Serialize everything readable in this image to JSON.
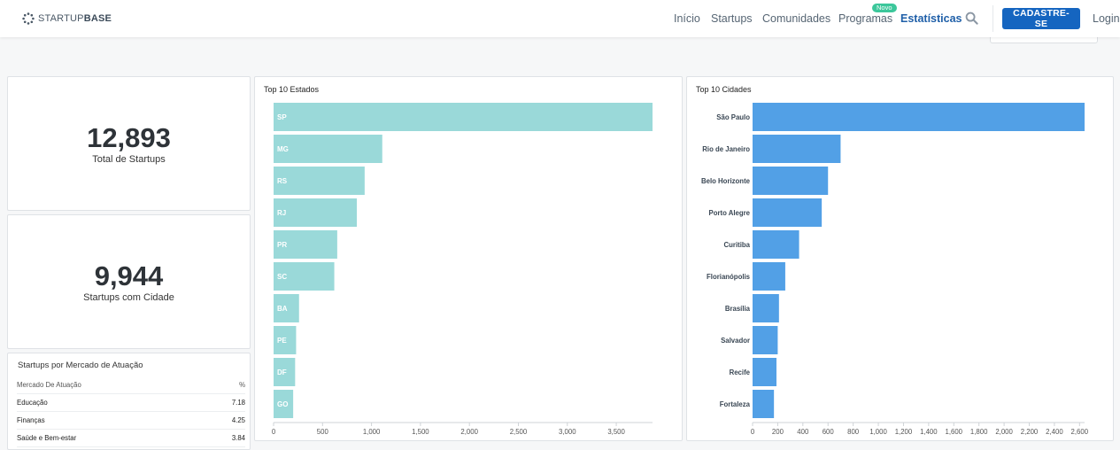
{
  "header": {
    "logo": {
      "prefix": "STARTUP",
      "suffix": "BASE"
    },
    "nav": [
      {
        "label": "Início",
        "active": false
      },
      {
        "label": "Startups",
        "active": false
      },
      {
        "label": "Comunidades",
        "active": false
      },
      {
        "label": "Programas",
        "active": false
      },
      {
        "label": "Estatísticas",
        "active": true
      }
    ],
    "badge": "Novo",
    "cta": "CADASTRE-SE",
    "login": "Login",
    "colors": {
      "accent": "#1565c0",
      "active_nav": "#1f5fa8",
      "badge": "#3cc79b"
    }
  },
  "kpis": [
    {
      "value": "12,893",
      "label": "Total de Startups"
    },
    {
      "value": "9,944",
      "label": "Startups com Cidade"
    }
  ],
  "market_table": {
    "title": "Startups por Mercado de Atuação",
    "columns": [
      "Mercado De Atuação",
      "%"
    ],
    "rows": [
      {
        "name": "Educação",
        "pct": "7.18"
      },
      {
        "name": "Finanças",
        "pct": "4.25"
      },
      {
        "name": "Saúde e Bem-estar",
        "pct": "3.84"
      }
    ]
  },
  "chart_data": [
    {
      "type": "bar",
      "orientation": "horizontal",
      "title": "Top 10 Estados",
      "categories": [
        "SP",
        "MG",
        "RS",
        "RJ",
        "PR",
        "SC",
        "BA",
        "PE",
        "DF",
        "GO"
      ],
      "values": [
        3870,
        1110,
        930,
        850,
        650,
        620,
        260,
        230,
        220,
        200
      ],
      "xlim": [
        0,
        3870
      ],
      "xticks": [
        0,
        500,
        1000,
        1500,
        2000,
        2500,
        3000,
        3500
      ],
      "xtick_labels": [
        "0",
        "500",
        "1,000",
        "1,500",
        "2,000",
        "2,500",
        "3,000",
        "3,500"
      ],
      "label_position": "inside",
      "color": "#9ad9d9"
    },
    {
      "type": "bar",
      "orientation": "horizontal",
      "title": "Top 10 Cidades",
      "categories": [
        "São Paulo",
        "Rio de Janeiro",
        "Belo Horizonte",
        "Porto Alegre",
        "Curitiba",
        "Florianópolis",
        "Brasília",
        "Salvador",
        "Recife",
        "Fortaleza"
      ],
      "values": [
        2640,
        700,
        600,
        550,
        370,
        260,
        210,
        200,
        190,
        170
      ],
      "xlim": [
        0,
        2640
      ],
      "xticks": [
        0,
        200,
        400,
        600,
        800,
        1000,
        1200,
        1400,
        1600,
        1800,
        2000,
        2200,
        2400,
        2600
      ],
      "xtick_labels": [
        "0",
        "200",
        "400",
        "600",
        "800",
        "1,000",
        "1,200",
        "1,400",
        "1,600",
        "1,800",
        "2,000",
        "2,200",
        "2,400",
        "2,600"
      ],
      "label_position": "left",
      "color": "#52a0e6"
    }
  ]
}
